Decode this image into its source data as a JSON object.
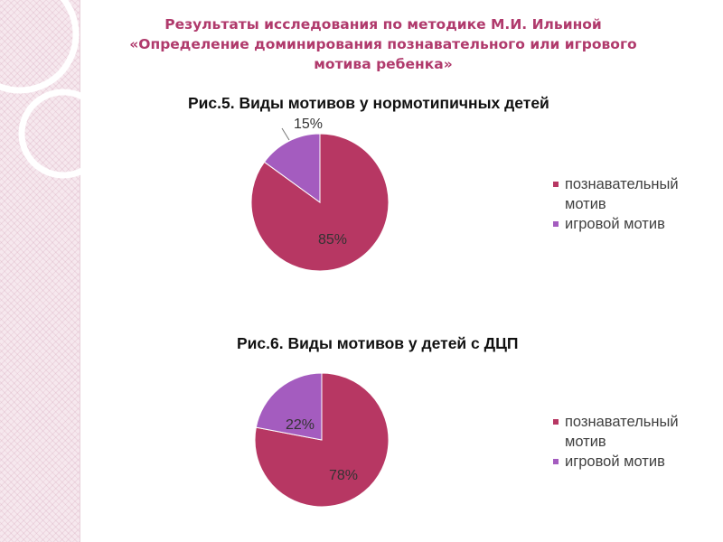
{
  "slide": {
    "title_lines": [
      "Результаты исследования по методике М.И. Ильиной",
      "«Определение доминирования познавательного или игрового",
      "мотива ребенка»"
    ]
  },
  "colors": {
    "cognitive": "#b73763",
    "play": "#a45cbf",
    "title": "#b03a6c"
  },
  "chart_data": [
    {
      "type": "pie",
      "title": "Рис.5. Виды мотивов у нормотипичных детей",
      "categories": [
        "познавательный мотив",
        "игровой мотив"
      ],
      "values": [
        85,
        15
      ],
      "labels": [
        "85%",
        "15%"
      ],
      "legend_position": "right"
    },
    {
      "type": "pie",
      "title": "Рис.6. Виды мотивов у детей с ДЦП",
      "categories": [
        "познавательный мотив",
        "игровой мотив"
      ],
      "values": [
        78,
        22
      ],
      "labels": [
        "78%",
        "22%"
      ],
      "legend_position": "right"
    }
  ]
}
